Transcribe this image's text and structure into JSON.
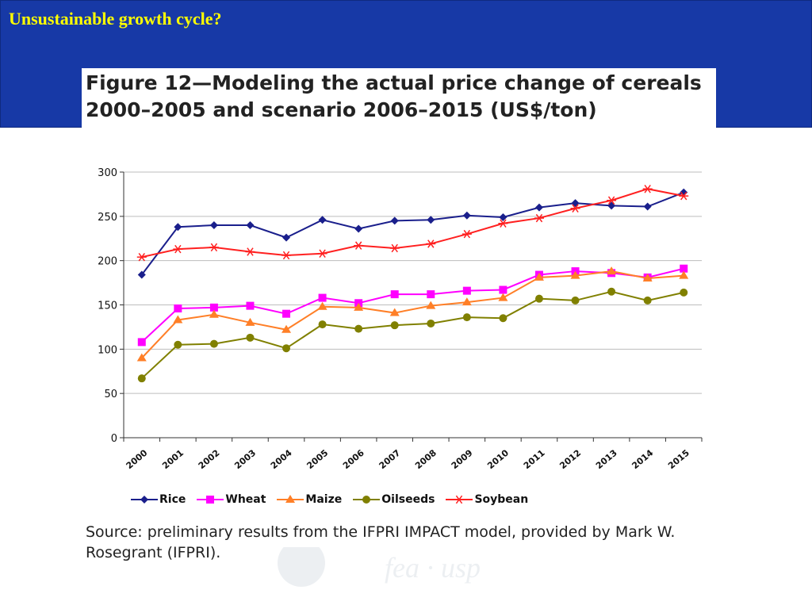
{
  "slide": {
    "title": "Unsustainable growth cycle?"
  },
  "figure": {
    "title": "Figure 12—Modeling the actual price change of cereals 2000–2005 and scenario 2006–2015 (US$/ton)",
    "source": "Source: preliminary results from the IFPRI IMPACT model, provided by Mark W. Rosegrant (IFPRI)."
  },
  "chart_data": {
    "type": "line",
    "x": [
      "2000",
      "2001",
      "2002",
      "2003",
      "2004",
      "2005",
      "2006",
      "2007",
      "2008",
      "2009",
      "2010",
      "2011",
      "2012",
      "2013",
      "2014",
      "2015"
    ],
    "ylim": [
      0,
      300
    ],
    "yticks": [
      0,
      50,
      100,
      150,
      200,
      250,
      300
    ],
    "grid": true,
    "legend_position": "bottom",
    "series": [
      {
        "name": "Rice",
        "color": "#1a1f8c",
        "marker": "diamond",
        "values": [
          184,
          238,
          240,
          240,
          226,
          246,
          236,
          245,
          246,
          251,
          249,
          260,
          265,
          262,
          261,
          277
        ]
      },
      {
        "name": "Wheat",
        "color": "#ff00ff",
        "marker": "square",
        "values": [
          108,
          146,
          147,
          149,
          140,
          158,
          152,
          162,
          162,
          166,
          167,
          184,
          188,
          186,
          181,
          191
        ]
      },
      {
        "name": "Maize",
        "color": "#ff7f27",
        "marker": "triangle",
        "values": [
          90,
          133,
          139,
          130,
          122,
          148,
          147,
          141,
          149,
          153,
          158,
          181,
          183,
          188,
          180,
          183
        ]
      },
      {
        "name": "Oilseeds",
        "color": "#808000",
        "marker": "circle",
        "values": [
          67,
          105,
          106,
          113,
          101,
          128,
          123,
          127,
          129,
          136,
          135,
          157,
          155,
          165,
          155,
          164
        ]
      },
      {
        "name": "Soybean",
        "color": "#ff2020",
        "marker": "asterisk",
        "values": [
          204,
          213,
          215,
          210,
          206,
          208,
          217,
          214,
          219,
          230,
          242,
          248,
          259,
          268,
          281,
          273
        ]
      }
    ]
  }
}
